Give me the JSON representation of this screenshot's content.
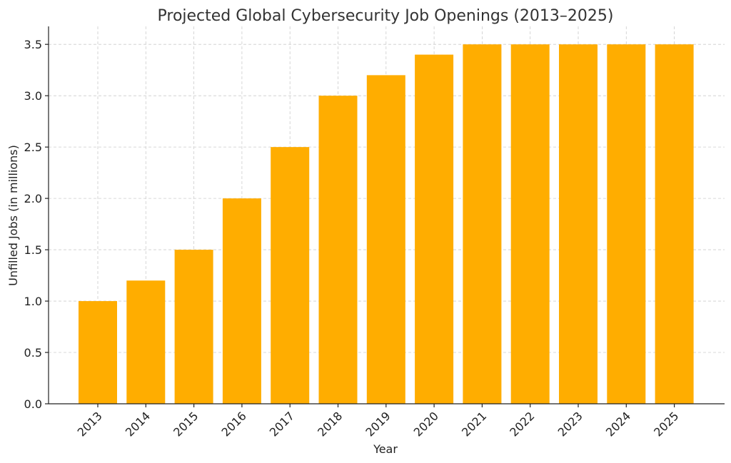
{
  "chart_data": {
    "type": "bar",
    "title": "Projected Global Cybersecurity Job Openings (2013–2025)",
    "xlabel": "Year",
    "ylabel": "Unfilled Jobs (in millions)",
    "categories": [
      "2013",
      "2014",
      "2015",
      "2016",
      "2017",
      "2018",
      "2019",
      "2020",
      "2021",
      "2022",
      "2023",
      "2024",
      "2025"
    ],
    "values": [
      1.0,
      1.2,
      1.5,
      2.0,
      2.5,
      3.0,
      3.2,
      3.4,
      3.5,
      3.5,
      3.5,
      3.5,
      3.5
    ],
    "ylim": [
      0,
      3.675
    ],
    "yticks": [
      "0.0",
      "0.5",
      "1.0",
      "1.5",
      "2.0",
      "2.5",
      "3.0",
      "3.5"
    ],
    "bar_color": "#FFAD00",
    "grid": true
  }
}
